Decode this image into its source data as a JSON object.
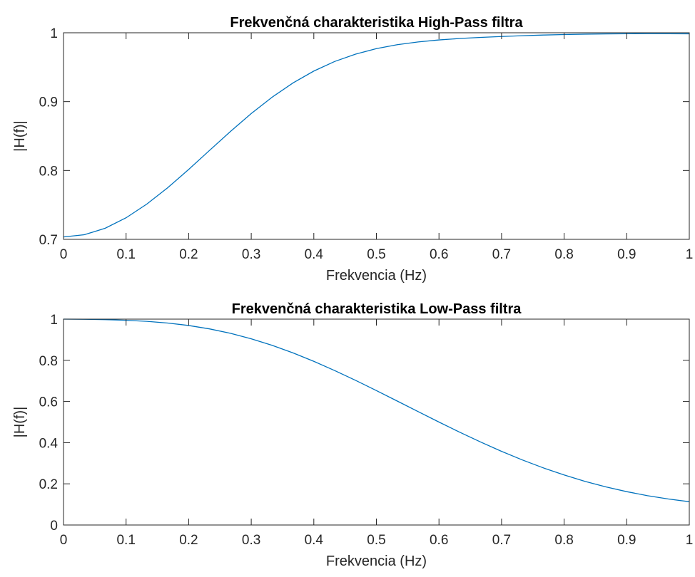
{
  "chart_data": [
    {
      "type": "line",
      "title": "Frekvenčná charakteristika High-Pass filtra",
      "xlabel": "Frekvencia (Hz)",
      "ylabel": "|H(f)|",
      "xlim": [
        0,
        1
      ],
      "ylim": [
        0.7,
        1
      ],
      "xticks": [
        0,
        0.1,
        0.2,
        0.3,
        0.4,
        0.5,
        0.6,
        0.7,
        0.8,
        0.9,
        1
      ],
      "xtick_labels": [
        "0",
        "0.1",
        "0.2",
        "0.3",
        "0.4",
        "0.5",
        "0.6",
        "0.7",
        "0.8",
        "0.9",
        "1"
      ],
      "yticks": [
        0.7,
        0.8,
        0.9,
        1
      ],
      "ytick_labels": [
        "0.7",
        "0.8",
        "0.9",
        "1"
      ],
      "grid": false,
      "color": "#0072BD",
      "series": [
        {
          "x": [
            0,
            0.0333,
            0.0667,
            0.1,
            0.1333,
            0.1667,
            0.2,
            0.2333,
            0.2667,
            0.3,
            0.3333,
            0.3667,
            0.4,
            0.4333,
            0.4667,
            0.5,
            0.5333,
            0.5667,
            0.6,
            0.6333,
            0.6667,
            0.7,
            0.7333,
            0.7667,
            0.8,
            0.8333,
            0.8667,
            0.9,
            0.9333,
            0.9667,
            1
          ],
          "values": [
            0.7035,
            0.7067,
            0.7162,
            0.7313,
            0.7513,
            0.7751,
            0.8015,
            0.8291,
            0.8566,
            0.8827,
            0.9064,
            0.9271,
            0.9444,
            0.9583,
            0.969,
            0.977,
            0.9827,
            0.9867,
            0.9896,
            0.9917,
            0.9933,
            0.9946,
            0.9957,
            0.9967,
            0.9974,
            0.998,
            0.9984,
            0.9986,
            0.9987,
            0.9986,
            0.9985
          ]
        }
      ]
    },
    {
      "type": "line",
      "title": "Frekvenčná charakteristika Low-Pass filtra",
      "xlabel": "Frekvencia (Hz)",
      "ylabel": "|H(f)|",
      "xlim": [
        0,
        1
      ],
      "ylim": [
        0,
        1
      ],
      "xticks": [
        0,
        0.1,
        0.2,
        0.3,
        0.4,
        0.5,
        0.6,
        0.7,
        0.8,
        0.9,
        1
      ],
      "xtick_labels": [
        "0",
        "0.1",
        "0.2",
        "0.3",
        "0.4",
        "0.5",
        "0.6",
        "0.7",
        "0.8",
        "0.9",
        "1"
      ],
      "yticks": [
        0,
        0.2,
        0.4,
        0.6,
        0.8,
        1
      ],
      "ytick_labels": [
        "0",
        "0.2",
        "0.4",
        "0.6",
        "0.8",
        "1"
      ],
      "grid": false,
      "color": "#0072BD",
      "series": [
        {
          "x": [
            0,
            0.0333,
            0.0667,
            0.1,
            0.1333,
            0.1667,
            0.2,
            0.2333,
            0.2667,
            0.3,
            0.3333,
            0.3667,
            0.4,
            0.4333,
            0.4667,
            0.5,
            0.5333,
            0.5667,
            0.6,
            0.6333,
            0.6667,
            0.7,
            0.7333,
            0.7667,
            0.8,
            0.8333,
            0.8667,
            0.9,
            0.9333,
            0.9667,
            1
          ],
          "values": [
            1,
            0.9994,
            0.9976,
            0.9945,
            0.9893,
            0.9811,
            0.9691,
            0.9526,
            0.9312,
            0.9045,
            0.8727,
            0.836,
            0.795,
            0.7503,
            0.7027,
            0.653,
            0.6021,
            0.5508,
            0.5,
            0.4504,
            0.4028,
            0.3578,
            0.3159,
            0.2775,
            0.2429,
            0.2121,
            0.1852,
            0.162,
            0.1424,
            0.1262,
            0.1131
          ]
        }
      ]
    }
  ]
}
